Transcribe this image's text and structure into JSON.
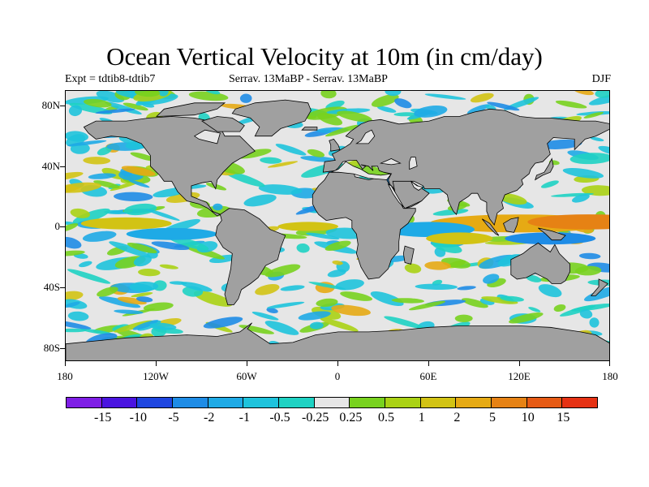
{
  "title": "Ocean Vertical Velocity at 10m (in cm/day)",
  "subtitle_left": "Expt = tdtib8-tdtib7",
  "subtitle_center": "Serrav.   13MaBP - Serrav.   13MaBP",
  "subtitle_right": "DJF",
  "y_ticks": [
    "80N",
    "40N",
    "0",
    "40S",
    "80S"
  ],
  "x_ticks": [
    "180",
    "120W",
    "60W",
    "0",
    "60E",
    "120E",
    "180"
  ],
  "colorbar": {
    "labels": [
      "-15",
      "-10",
      "-5",
      "-2",
      "-1",
      "-0.5",
      "-0.25",
      "0.25",
      "0.5",
      "1",
      "2",
      "5",
      "10",
      "15"
    ],
    "colors": [
      "#7f1ee6",
      "#4a14e0",
      "#1e46e0",
      "#1e8ce6",
      "#1eaae6",
      "#1ec3dc",
      "#1ed2c3",
      "#e6e6e6",
      "#78d21e",
      "#aad214",
      "#d2c314",
      "#e6aa14",
      "#e68214",
      "#e65a14",
      "#e63214"
    ]
  },
  "map": {
    "land_color": "#a0a0a0",
    "ocean_neutral_color": "#e6e6e6"
  }
}
